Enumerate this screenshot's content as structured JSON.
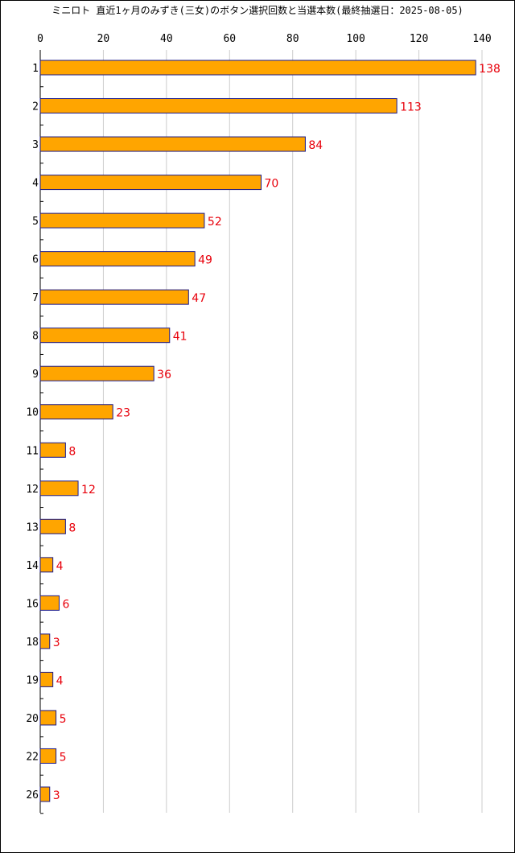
{
  "chart_data": {
    "type": "bar",
    "orientation": "horizontal",
    "title": "ミニロト 直近1ヶ月のみずき(三女)のボタン選択回数と当選本数(最終抽選日：2025-08-05)",
    "xlabel": "",
    "ylabel": "",
    "xlim": [
      0,
      140
    ],
    "x_ticks": [
      "0",
      "20",
      "40",
      "60",
      "80",
      "100",
      "120",
      "140"
    ],
    "grid": "vertical",
    "legend": "none",
    "categories": [
      "1",
      "2",
      "3",
      "4",
      "5",
      "6",
      "7",
      "8",
      "9",
      "10",
      "11",
      "12",
      "13",
      "14",
      "16",
      "18",
      "19",
      "20",
      "22",
      "26"
    ],
    "values": [
      138,
      113,
      84,
      70,
      52,
      49,
      47,
      41,
      36,
      23,
      8,
      12,
      8,
      4,
      6,
      3,
      4,
      5,
      5,
      3
    ],
    "colors": {
      "bar_fill": "#ffa500",
      "bar_stroke": "#1a1a8c",
      "data_label": "#e8000b",
      "grid": "#cccccc",
      "axis": "#000000"
    }
  }
}
